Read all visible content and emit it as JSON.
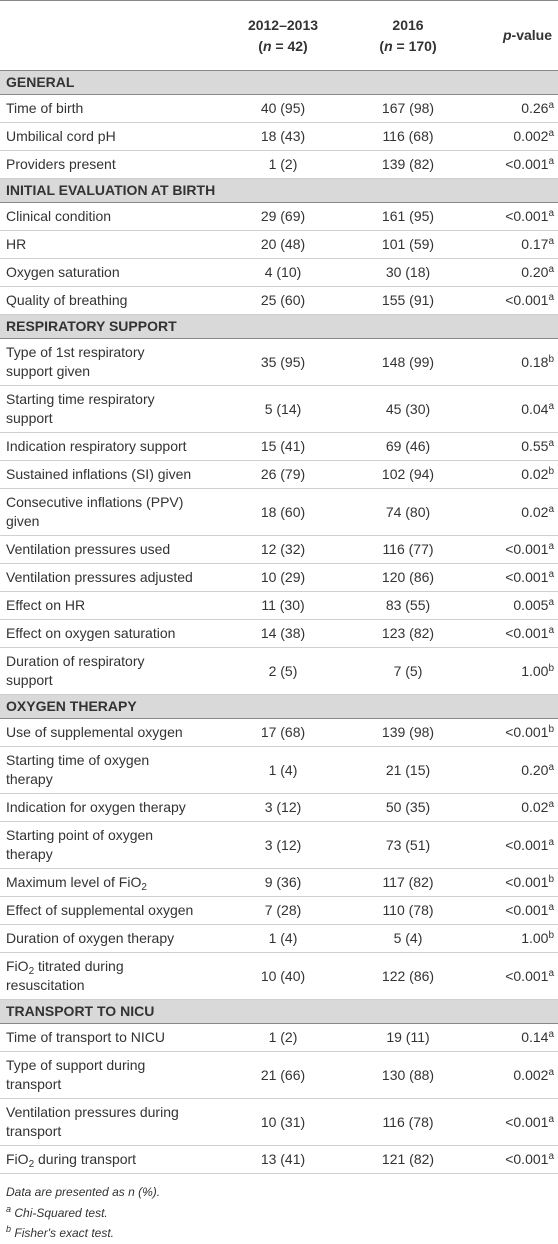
{
  "header": {
    "columns": [
      {
        "period": "2012–2013",
        "n": [
          "(",
          "n",
          " = 42)"
        ]
      },
      {
        "period": "2016",
        "n": [
          "(",
          "n",
          " = 170)"
        ]
      }
    ],
    "pvalue": [
      "p",
      "-value"
    ]
  },
  "sections": [
    {
      "title": "GENERAL",
      "rows": [
        {
          "label": "Time of birth",
          "a": "40 (95)",
          "b": "167 (98)",
          "p": "0.26",
          "test": "a"
        },
        {
          "label": "Umbilical cord pH",
          "a": "18 (43)",
          "b": "116 (68)",
          "p": "0.002",
          "test": "a"
        },
        {
          "label": "Providers present",
          "a": "1 (2)",
          "b": "139 (82)",
          "p": "<0.001",
          "test": "a"
        }
      ]
    },
    {
      "title": "INITIAL EVALUATION AT BIRTH",
      "rows": [
        {
          "label": "Clinical condition",
          "a": "29 (69)",
          "b": "161 (95)",
          "p": "<0.001",
          "test": "a"
        },
        {
          "label": "HR",
          "a": "20 (48)",
          "b": "101 (59)",
          "p": "0.17",
          "test": "a"
        },
        {
          "label": "Oxygen saturation",
          "a": "4 (10)",
          "b": "30 (18)",
          "p": "0.20",
          "test": "a"
        },
        {
          "label": "Quality of breathing",
          "a": "25 (60)",
          "b": "155 (91)",
          "p": "<0.001",
          "test": "a"
        }
      ]
    },
    {
      "title": "RESPIRATORY SUPPORT",
      "rows": [
        {
          "label": [
            "Type of 1st respiratory",
            "support given"
          ],
          "a": "35 (95)",
          "b": "148 (99)",
          "p": "0.18",
          "test": "b"
        },
        {
          "label": [
            "Starting time respiratory",
            "support"
          ],
          "a": "5 (14)",
          "b": "45 (30)",
          "p": "0.04",
          "test": "a"
        },
        {
          "label": "Indication respiratory support",
          "a": "15 (41)",
          "b": "69 (46)",
          "p": "0.55",
          "test": "a"
        },
        {
          "label": "Sustained inflations (SI) given",
          "a": "26 (79)",
          "b": "102 (94)",
          "p": "0.02",
          "test": "b"
        },
        {
          "label": [
            "Consecutive inflations (PPV)",
            "given"
          ],
          "a": "18 (60)",
          "b": "74 (80)",
          "p": "0.02",
          "test": "a"
        },
        {
          "label": "Ventilation pressures used",
          "a": "12 (32)",
          "b": "116 (77)",
          "p": "<0.001",
          "test": "a"
        },
        {
          "label": "Ventilation pressures adjusted",
          "a": "10 (29)",
          "b": "120 (86)",
          "p": "<0.001",
          "test": "a"
        },
        {
          "label": "Effect on HR",
          "a": "11 (30)",
          "b": "83 (55)",
          "p": "0.005",
          "test": "a"
        },
        {
          "label": "Effect on oxygen saturation",
          "a": "14 (38)",
          "b": "123 (82)",
          "p": "<0.001",
          "test": "a"
        },
        {
          "label": [
            "Duration of respiratory",
            "support"
          ],
          "a": "2 (5)",
          "b": "7 (5)",
          "p": "1.00",
          "test": "b"
        }
      ]
    },
    {
      "title": "OXYGEN THERAPY",
      "rows": [
        {
          "label": "Use of supplemental oxygen",
          "a": "17 (68)",
          "b": "139 (98)",
          "p": "<0.001",
          "test": "b"
        },
        {
          "label": [
            "Starting time of oxygen",
            "therapy"
          ],
          "a": "1 (4)",
          "b": "21 (15)",
          "p": "0.20",
          "test": "a"
        },
        {
          "label": "Indication for oxygen therapy",
          "a": "3 (12)",
          "b": "50 (35)",
          "p": "0.02",
          "test": "a"
        },
        {
          "label": [
            "Starting point of oxygen",
            "therapy"
          ],
          "a": "3 (12)",
          "b": "73 (51)",
          "p": "<0.001",
          "test": "a"
        },
        {
          "label": [
            [
              "Maximum level of FiO",
              "2"
            ]
          ],
          "a": "9 (36)",
          "b": "117 (82)",
          "p": "<0.001",
          "test": "b"
        },
        {
          "label": "Effect of supplemental oxygen",
          "a": "7 (28)",
          "b": "110 (78)",
          "p": "<0.001",
          "test": "a"
        },
        {
          "label": "Duration of oxygen therapy",
          "a": "1 (4)",
          "b": "5 (4)",
          "p": "1.00",
          "test": "b"
        },
        {
          "label": [
            [
              "FiO",
              "2",
              " titrated during"
            ],
            "resuscitation"
          ],
          "a": "10 (40)",
          "b": "122 (86)",
          "p": "<0.001",
          "test": "a"
        }
      ]
    },
    {
      "title": "TRANSPORT TO NICU",
      "rows": [
        {
          "label": "Time of transport to NICU",
          "a": "1 (2)",
          "b": "19 (11)",
          "p": "0.14",
          "test": "a"
        },
        {
          "label": [
            "Type of support during",
            "transport"
          ],
          "a": "21 (66)",
          "b": "130 (88)",
          "p": "0.002",
          "test": "a"
        },
        {
          "label": [
            "Ventilation pressures during",
            "transport"
          ],
          "a": "10 (31)",
          "b": "116 (78)",
          "p": "<0.001",
          "test": "a"
        },
        {
          "label": [
            [
              "FiO",
              "2",
              " during transport"
            ]
          ],
          "a": "13 (41)",
          "b": "121 (82)",
          "p": "<0.001",
          "test": "a"
        }
      ]
    }
  ],
  "footnotes": {
    "note": "Data are presented as n (%).",
    "tests": [
      {
        "mark": "a",
        "text": "Chi-Squared test."
      },
      {
        "mark": "b",
        "text": "Fisher's exact test."
      }
    ]
  }
}
